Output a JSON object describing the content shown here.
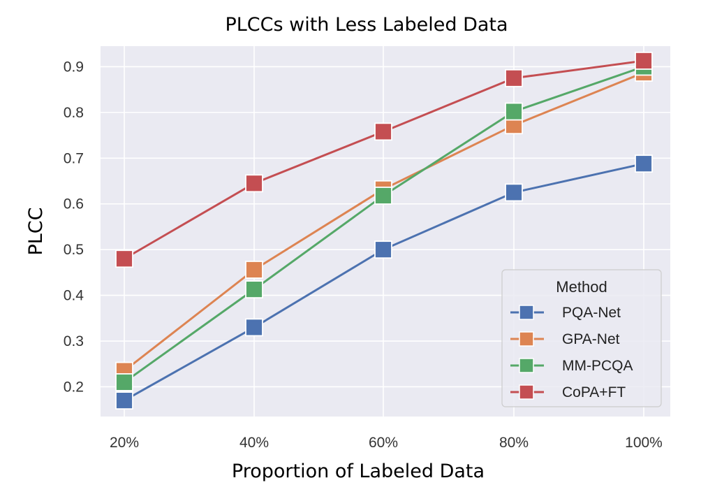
{
  "chart_data": {
    "type": "line",
    "title": "PLCCs with Less Labeled Data",
    "xlabel": "Proportion of Labeled Data",
    "ylabel": "PLCC",
    "categories": [
      "20%",
      "40%",
      "60%",
      "80%",
      "100%"
    ],
    "ylim": [
      0.135,
      0.945
    ],
    "yticks": [
      0.2,
      0.3,
      0.4,
      0.5,
      0.6,
      0.7,
      0.8,
      0.9
    ],
    "ytick_labels": [
      "0.2",
      "0.3",
      "0.4",
      "0.5",
      "0.6",
      "0.7",
      "0.8",
      "0.9"
    ],
    "grid": true,
    "legend": {
      "title": "Method",
      "location": "lower-right"
    },
    "series": [
      {
        "name": "PQA-Net",
        "color": "#4c72b0",
        "values": [
          0.17,
          0.33,
          0.5,
          0.625,
          0.688
        ]
      },
      {
        "name": "GPA-Net",
        "color": "#dd8452",
        "values": [
          0.235,
          0.456,
          0.632,
          0.772,
          0.887
        ]
      },
      {
        "name": "MM-PCQA",
        "color": "#55a868",
        "values": [
          0.21,
          0.413,
          0.618,
          0.802,
          0.9
        ]
      },
      {
        "name": "CoPA+FT",
        "color": "#c44e52",
        "values": [
          0.48,
          0.645,
          0.758,
          0.875,
          0.913
        ]
      }
    ]
  }
}
